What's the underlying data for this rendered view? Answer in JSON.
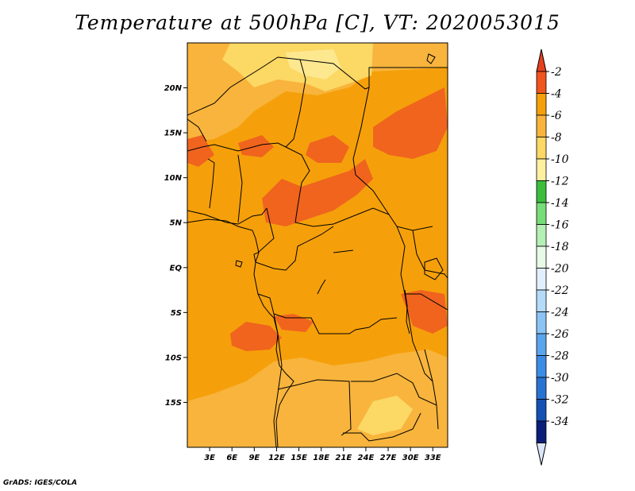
{
  "title": "Temperature at 500hPa [C], VT: 2020053015",
  "credit": "GrADS: IGES/COLA",
  "map": {
    "lon_range": [
      0,
      35
    ],
    "lat_range": [
      -20,
      25
    ],
    "lat_ticks": [
      {
        "lat": 20,
        "label": "20N"
      },
      {
        "lat": 15,
        "label": "15N"
      },
      {
        "lat": 10,
        "label": "10N"
      },
      {
        "lat": 5,
        "label": "5N"
      },
      {
        "lat": 0,
        "label": "EQ"
      },
      {
        "lat": -5,
        "label": "5S"
      },
      {
        "lat": -10,
        "label": "10S"
      },
      {
        "lat": -15,
        "label": "15S"
      }
    ],
    "lon_ticks": [
      {
        "lon": 3,
        "label": "3E"
      },
      {
        "lon": 6,
        "label": "6E"
      },
      {
        "lon": 9,
        "label": "9E"
      },
      {
        "lon": 12,
        "label": "12E"
      },
      {
        "lon": 15,
        "label": "15E"
      },
      {
        "lon": 18,
        "label": "18E"
      },
      {
        "lon": 21,
        "label": "21E"
      },
      {
        "lon": 24,
        "label": "24E"
      },
      {
        "lon": 27,
        "label": "27E"
      },
      {
        "lon": 30,
        "label": "30E"
      },
      {
        "lon": 33,
        "label": "33E"
      }
    ]
  },
  "colorbar": {
    "levels": [
      {
        "label": "-2",
        "color": "#f0551e"
      },
      {
        "label": "-4",
        "color": "#f5a00a"
      },
      {
        "label": "-6",
        "color": "#f8b43c"
      },
      {
        "label": "-8",
        "color": "#fcd864"
      },
      {
        "label": "-10",
        "color": "#fdf0a0"
      },
      {
        "label": "-12",
        "color": "#3cbe3c"
      },
      {
        "label": "-14",
        "color": "#78dc78"
      },
      {
        "label": "-16",
        "color": "#b4f0b4"
      },
      {
        "label": "-18",
        "color": "#e6fae6"
      },
      {
        "label": "-20",
        "color": "#e1f0ff"
      },
      {
        "label": "-22",
        "color": "#b4dcfa"
      },
      {
        "label": "-24",
        "color": "#8cc3f5"
      },
      {
        "label": "-26",
        "color": "#5aa5eb"
      },
      {
        "label": "-28",
        "color": "#3c8ce6"
      },
      {
        "label": "-30",
        "color": "#2873d2"
      },
      {
        "label": "-32",
        "color": "#1450b4"
      },
      {
        "label": "-34",
        "color": "#0a1e78"
      }
    ],
    "top_arrow_color": "#e6411e",
    "bottom_arrow_color": "#dce6fa"
  },
  "field_colors": {
    "base": "#f5a00a",
    "warm": "#f0641e",
    "cool": "#f8b43c",
    "cooler": "#fcd864",
    "coolest": "#fde890"
  }
}
